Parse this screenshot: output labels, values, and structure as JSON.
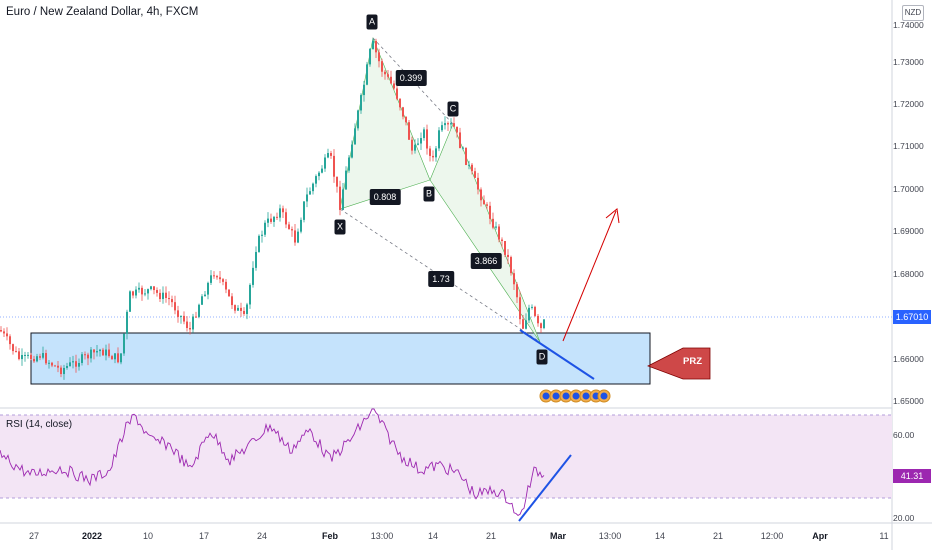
{
  "header": {
    "title": "Euro / New Zealand Dollar, 4h, FXCM",
    "currency_badge": "NZD"
  },
  "price_axis": {
    "labels": [
      "1.74000",
      "1.73000",
      "1.72000",
      "1.71000",
      "1.70000",
      "1.69000",
      "1.68000",
      "1.67000",
      "1.66000",
      "1.65000"
    ],
    "current_price": "1.67010",
    "current_price_color": "#2962ff"
  },
  "rsi": {
    "title": "RSI (14, close)",
    "labels": [
      "60.00",
      "20.00"
    ],
    "current_value": "41.31",
    "line_color": "#9c27b0",
    "band_color": "#f3e5f5"
  },
  "time_axis": {
    "labels": [
      "27",
      "2022",
      "10",
      "17",
      "24",
      "Feb",
      "13:00",
      "14",
      "21",
      "Mar",
      "13:00",
      "14",
      "21",
      "12:00",
      "Apr",
      "11"
    ]
  },
  "pattern": {
    "points": [
      "X",
      "A",
      "B",
      "C",
      "D"
    ],
    "ratios": [
      "0.399",
      "0.808",
      "3.866",
      "1.73"
    ],
    "zone_label": "PRZ",
    "fill_color": "#e8f5e9",
    "zone_color": "#bbdefb",
    "zone_label_color": "#c62828",
    "arrow_color": "#d50000",
    "trend_color": "#1e53e5"
  },
  "colors": {
    "up_candle": "#26a69a",
    "down_candle": "#ef5350"
  }
}
